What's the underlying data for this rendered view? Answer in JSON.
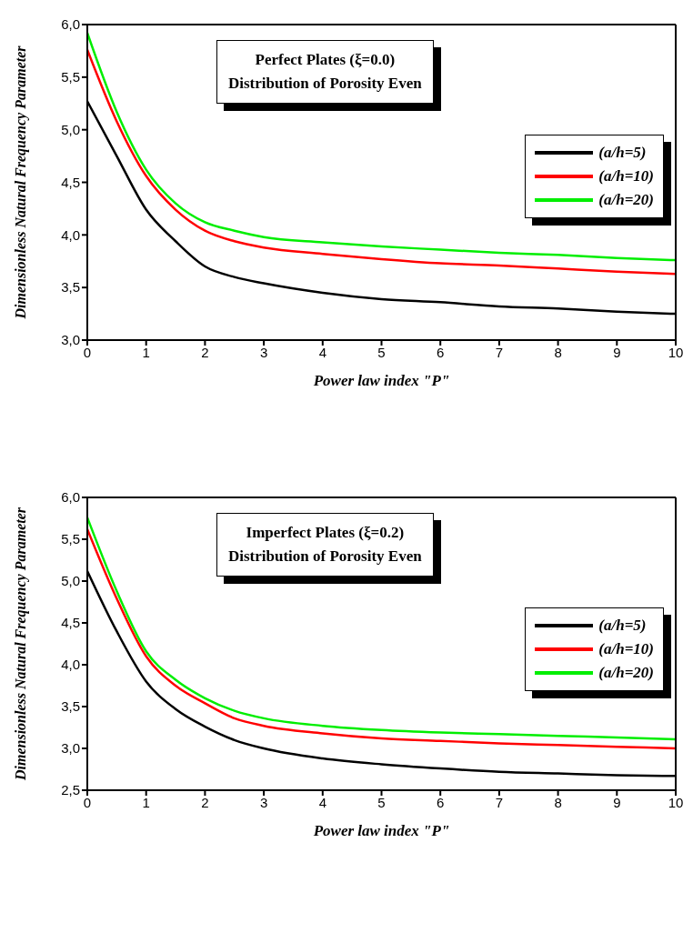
{
  "chart_data": [
    {
      "type": "line",
      "title": "Perfect Plates (ξ=0.0)",
      "subtitle": "Distribution of Porosity Even",
      "xlabel": "Power law index \"P\"",
      "ylabel": "Dimensionless Natural Frequency Parameter",
      "x": [
        0,
        0.5,
        1,
        1.5,
        2,
        2.5,
        3,
        4,
        5,
        6,
        7,
        8,
        9,
        10
      ],
      "series": [
        {
          "name": "(a/h=5)",
          "color": "#000000",
          "values": [
            5.27,
            4.75,
            4.24,
            3.94,
            3.7,
            3.6,
            3.54,
            3.45,
            3.39,
            3.36,
            3.32,
            3.3,
            3.27,
            3.25
          ]
        },
        {
          "name": "(a/h=10)",
          "color": "#ff0000",
          "values": [
            5.76,
            5.08,
            4.56,
            4.24,
            4.04,
            3.94,
            3.88,
            3.82,
            3.77,
            3.73,
            3.71,
            3.68,
            3.65,
            3.63
          ]
        },
        {
          "name": "(a/h=20)",
          "color": "#00ee00",
          "values": [
            5.92,
            5.17,
            4.62,
            4.3,
            4.12,
            4.04,
            3.98,
            3.93,
            3.89,
            3.86,
            3.83,
            3.81,
            3.78,
            3.76
          ]
        }
      ],
      "xlim": [
        0,
        10
      ],
      "xticks": [
        0,
        1,
        2,
        3,
        4,
        5,
        6,
        7,
        8,
        9,
        10
      ],
      "ylim": [
        3,
        6
      ],
      "yticks": [
        {
          "value": 3,
          "label": "3,0"
        },
        {
          "value": 3.5,
          "label": "3,5"
        },
        {
          "value": 4,
          "label": "4,0"
        },
        {
          "value": 4.5,
          "label": "4,5"
        },
        {
          "value": 5,
          "label": "5,0"
        },
        {
          "value": 5.5,
          "label": "5,5"
        },
        {
          "value": 6,
          "label": "6,0"
        }
      ],
      "legend": "right",
      "marker": "none",
      "line_style": "solid",
      "grid": false
    },
    {
      "type": "line",
      "title": "Imperfect Plates (ξ=0.2)",
      "subtitle": "Distribution of Porosity Even",
      "xlabel": "Power law index \"P\"",
      "ylabel": "Dimensionless Natural Frequency Parameter",
      "x": [
        0,
        0.5,
        1,
        1.5,
        2,
        2.5,
        3,
        4,
        5,
        6,
        7,
        8,
        9,
        10
      ],
      "series": [
        {
          "name": "(a/h=5)",
          "color": "#000000",
          "values": [
            5.12,
            4.4,
            3.8,
            3.47,
            3.26,
            3.1,
            3.0,
            2.88,
            2.81,
            2.76,
            2.72,
            2.7,
            2.68,
            2.67
          ]
        },
        {
          "name": "(a/h=10)",
          "color": "#ff0000",
          "values": [
            5.62,
            4.79,
            4.1,
            3.75,
            3.54,
            3.36,
            3.27,
            3.18,
            3.12,
            3.09,
            3.06,
            3.04,
            3.02,
            3.0
          ]
        },
        {
          "name": "(a/h=20)",
          "color": "#00ee00",
          "values": [
            5.76,
            4.88,
            4.16,
            3.82,
            3.6,
            3.45,
            3.36,
            3.27,
            3.22,
            3.19,
            3.17,
            3.15,
            3.13,
            3.11
          ]
        }
      ],
      "xlim": [
        0,
        10
      ],
      "xticks": [
        0,
        1,
        2,
        3,
        4,
        5,
        6,
        7,
        8,
        9,
        10
      ],
      "ylim": [
        2.5,
        6
      ],
      "yticks": [
        {
          "value": 2.5,
          "label": "2,5"
        },
        {
          "value": 3,
          "label": "3,0"
        },
        {
          "value": 3.5,
          "label": "3,5"
        },
        {
          "value": 4,
          "label": "4,0"
        },
        {
          "value": 4.5,
          "label": "4,5"
        },
        {
          "value": 5,
          "label": "5,0"
        },
        {
          "value": 5.5,
          "label": "5,5"
        },
        {
          "value": 6,
          "label": "6,0"
        }
      ],
      "legend": "right",
      "marker": "none",
      "line_style": "solid",
      "grid": false
    }
  ]
}
